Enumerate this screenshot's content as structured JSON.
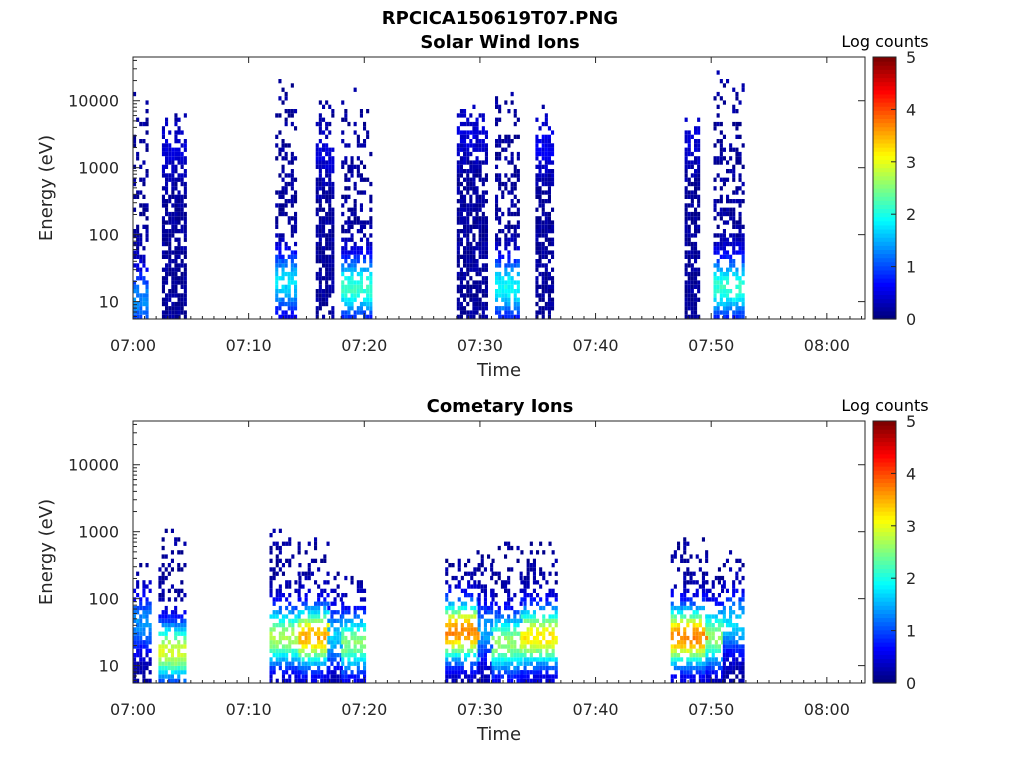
{
  "figure_title": "RPCICA150619T07.PNG",
  "chart_data": [
    {
      "type": "heatmap",
      "title": "Solar Wind Ions",
      "xlabel": "Time",
      "ylabel": "Energy (eV)",
      "x_ticks": [
        "07:00",
        "07:10",
        "07:20",
        "07:30",
        "07:40",
        "07:50",
        "08:00"
      ],
      "y_ticks": [
        "10",
        "100",
        "1000",
        "10000"
      ],
      "y_scale": "log",
      "ylim": [
        5.5,
        45000
      ],
      "xlim_minutes": [
        0,
        63.3
      ],
      "colorbar": {
        "label": "Log counts",
        "min": 0,
        "max": 5,
        "ticks": [
          "0",
          "1",
          "2",
          "3",
          "4",
          "5"
        ],
        "colormap": "jet"
      },
      "bursts": [
        {
          "t_start": 0.0,
          "t_end": 1.3,
          "e_peak": 10,
          "e_top": 12000,
          "peak_level": 1.2
        },
        {
          "t_start": 2.5,
          "t_end": 4.5,
          "e_peak": 2000,
          "e_top": 6000,
          "peak_level": 0.3
        },
        {
          "t_start": 12.3,
          "t_end": 14.0,
          "e_peak": 18,
          "e_top": 20000,
          "peak_level": 1.6
        },
        {
          "t_start": 15.8,
          "t_end": 17.3,
          "e_peak": 1500,
          "e_top": 12000,
          "peak_level": 0.3
        },
        {
          "t_start": 18.0,
          "t_end": 20.5,
          "e_peak": 15,
          "e_top": 15000,
          "peak_level": 2.0
        },
        {
          "t_start": 28.0,
          "t_end": 30.5,
          "e_peak": 3000,
          "e_top": 8000,
          "peak_level": 0.3
        },
        {
          "t_start": 31.3,
          "t_end": 33.3,
          "e_peak": 15,
          "e_top": 18000,
          "peak_level": 1.8
        },
        {
          "t_start": 34.8,
          "t_end": 36.3,
          "e_peak": 2000,
          "e_top": 8000,
          "peak_level": 0.4
        },
        {
          "t_start": 47.7,
          "t_end": 49.0,
          "e_peak": 2500,
          "e_top": 7000,
          "peak_level": 0.3
        },
        {
          "t_start": 50.2,
          "t_end": 52.8,
          "e_peak": 15,
          "e_top": 25000,
          "peak_level": 2.0
        }
      ]
    },
    {
      "type": "heatmap",
      "title": "Cometary Ions",
      "xlabel": "Time",
      "ylabel": "Energy (eV)",
      "x_ticks": [
        "07:00",
        "07:10",
        "07:20",
        "07:30",
        "07:40",
        "07:50",
        "08:00"
      ],
      "y_ticks": [
        "10",
        "100",
        "1000",
        "10000"
      ],
      "y_scale": "log",
      "ylim": [
        5.5,
        45000
      ],
      "xlim_minutes": [
        0,
        63.3
      ],
      "colorbar": {
        "label": "Log counts",
        "min": 0,
        "max": 5,
        "ticks": [
          "0",
          "1",
          "2",
          "3",
          "4",
          "5"
        ],
        "colormap": "jet"
      },
      "bursts": [
        {
          "t_start": 0.0,
          "t_end": 1.5,
          "e_peak": 40,
          "e_top": 400,
          "peak_level": 1.2
        },
        {
          "t_start": 2.2,
          "t_end": 4.5,
          "e_peak": 15,
          "e_top": 1000,
          "peak_level": 2.8
        },
        {
          "t_start": 11.8,
          "t_end": 14.3,
          "e_peak": 25,
          "e_top": 1200,
          "peak_level": 2.6
        },
        {
          "t_start": 14.3,
          "t_end": 16.8,
          "e_peak": 25,
          "e_top": 800,
          "peak_level": 3.4
        },
        {
          "t_start": 16.8,
          "t_end": 18.0,
          "e_peak": 25,
          "e_top": 300,
          "peak_level": 1.5
        },
        {
          "t_start": 18.0,
          "t_end": 20.0,
          "e_peak": 20,
          "e_top": 200,
          "peak_level": 2.4
        },
        {
          "t_start": 27.0,
          "t_end": 29.8,
          "e_peak": 30,
          "e_top": 600,
          "peak_level": 3.6
        },
        {
          "t_start": 29.8,
          "t_end": 31.0,
          "e_peak": 30,
          "e_top": 500,
          "peak_level": 1.3
        },
        {
          "t_start": 31.0,
          "t_end": 33.5,
          "e_peak": 20,
          "e_top": 700,
          "peak_level": 2.5
        },
        {
          "t_start": 33.5,
          "t_end": 36.5,
          "e_peak": 25,
          "e_top": 700,
          "peak_level": 3.1
        },
        {
          "t_start": 46.5,
          "t_end": 49.5,
          "e_peak": 25,
          "e_top": 800,
          "peak_level": 3.6
        },
        {
          "t_start": 49.5,
          "t_end": 51.0,
          "e_peak": 25,
          "e_top": 500,
          "peak_level": 2.5
        },
        {
          "t_start": 51.0,
          "t_end": 52.7,
          "e_peak": 40,
          "e_top": 500,
          "peak_level": 1.6
        }
      ]
    }
  ]
}
